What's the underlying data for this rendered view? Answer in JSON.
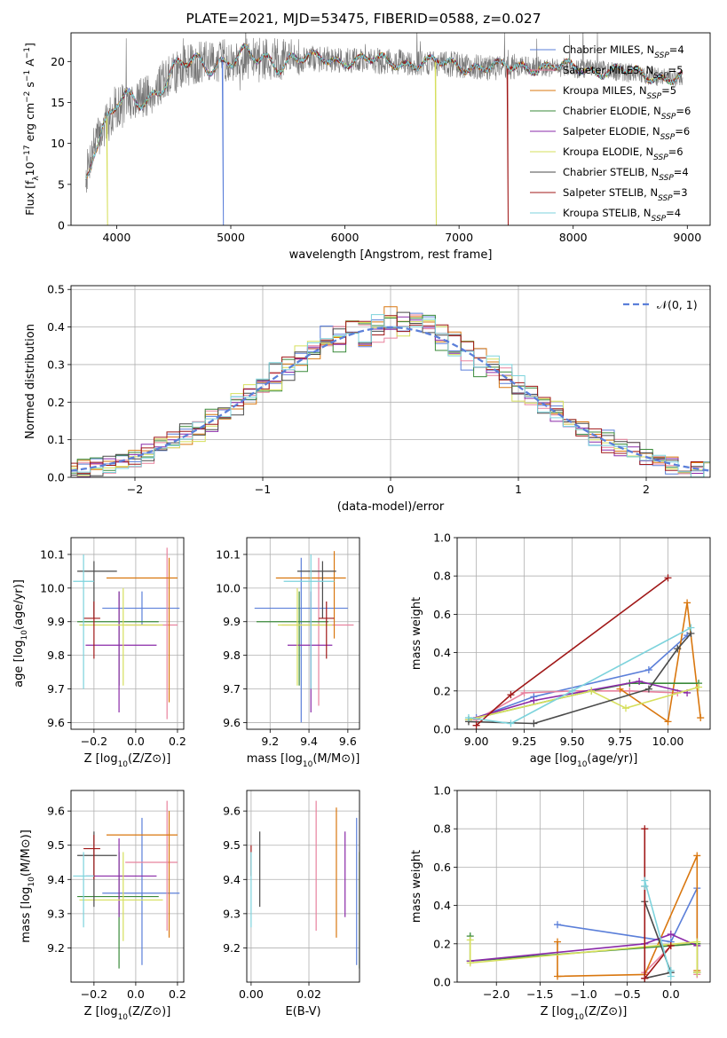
{
  "title": "PLATE=2021, MJD=53475, FIBERID=0588, z=0.027",
  "colors": {
    "s0": "#5b7fd9",
    "s1": "#e8829e",
    "s2": "#d9770f",
    "s3": "#3a8a3a",
    "s4": "#8a2aa8",
    "s5": "#d6df5c",
    "s6": "#4a4a4a",
    "s7": "#a01818",
    "s8": "#7dd3dc"
  },
  "chart_data": [
    {
      "id": "spectrum",
      "type": "line",
      "xlabel": "wavelength [Angstrom, rest frame]",
      "ylabel": "Flux [f_λ10^-17 erg cm^-2 s^-1 A^-1]",
      "xlim": [
        3600,
        9200
      ],
      "ylim": [
        0,
        23.5
      ],
      "xticks": [
        4000,
        5000,
        6000,
        7000,
        8000,
        9000
      ],
      "yticks": [
        0,
        5,
        10,
        15,
        20
      ],
      "grid": false,
      "legend_position": "top-right",
      "legend": [
        "Chabrier MILES, N_SSP=4",
        "Salpeter MILES, N_SSP=5",
        "Kroupa MILES, N_SSP=5",
        "Chabrier ELODIE, N_SSP=6",
        "Salpeter ELODIE, N_SSP=6",
        "Kroupa ELODIE, N_SSP=6",
        "Chabrier STELIB, N_SSP=4",
        "Salpeter STELIB, N_SSP=3",
        "Kroupa STELIB, N_SSP=4"
      ],
      "data_trend": {
        "x": [
          3730,
          3800,
          3900,
          4000,
          4100,
          4200,
          4300,
          4400,
          4500,
          4600,
          4800,
          5000,
          5200,
          5400,
          5600,
          5800,
          6000,
          6200,
          6400,
          6600,
          6800,
          7000,
          7200,
          7400,
          7600,
          7800,
          8000,
          8200,
          8400,
          8600,
          8800,
          8960
        ],
        "y": [
          6,
          10,
          12,
          14.5,
          15,
          15.5,
          16,
          17.5,
          18.5,
          19.5,
          20,
          20.2,
          20.3,
          20.3,
          20.2,
          20.3,
          20.2,
          20.1,
          20.0,
          19.8,
          19.8,
          19.6,
          19.3,
          19.2,
          19.5,
          19.3,
          19.2,
          19.0,
          18.8,
          18.4,
          18.1,
          18.0
        ]
      },
      "dropouts": [
        {
          "series": "Kroupa ELODIE",
          "x": 3920
        },
        {
          "series": "Chabrier MILES",
          "x": 4935
        },
        {
          "series": "Kroupa ELODIE",
          "x": 6800
        },
        {
          "series": "Salpeter STELIB",
          "x": 7430
        }
      ]
    },
    {
      "id": "residuals",
      "type": "histogram",
      "xlabel": "(data-model)/error",
      "ylabel": "Normed distribution",
      "xlim": [
        -2.5,
        2.5
      ],
      "ylim": [
        0,
        0.51
      ],
      "xticks": [
        -2,
        -1,
        0,
        1,
        2
      ],
      "yticks": [
        0.0,
        0.1,
        0.2,
        0.3,
        0.4,
        0.5
      ],
      "grid": true,
      "legend_position": "top-right",
      "legend": [
        "𝒩(0, 1)"
      ],
      "bin_width": 0.1,
      "reference": "N(0,1) normal density, dashed"
    },
    {
      "id": "age-vs-Z",
      "type": "errorbar",
      "xlabel": "Z [log₁₀(Z/Z⊙)]",
      "ylabel": "age  [log₁₀(age/yr)]",
      "xlim": [
        -0.31,
        0.23
      ],
      "ylim": [
        9.58,
        10.15
      ],
      "xticks": [
        -0.2,
        0.0,
        0.2
      ],
      "yticks": [
        9.6,
        9.7,
        9.8,
        9.9,
        10.0,
        10.1
      ],
      "grid": true,
      "points": [
        {
          "color": "s0",
          "x": 0.03,
          "y": 9.94,
          "xerr": [
            0.19,
            0.18
          ],
          "yerr": [
            0.05,
            0.05
          ]
        },
        {
          "color": "s1",
          "x": 0.15,
          "y": 9.89,
          "xerr": [
            0.2,
            0.05
          ],
          "yerr": [
            0.28,
            0.23
          ]
        },
        {
          "color": "s2",
          "x": 0.16,
          "y": 10.03,
          "xerr": [
            0.3,
            0.04
          ],
          "yerr": [
            0.37,
            0.06
          ]
        },
        {
          "color": "s3",
          "x": -0.08,
          "y": 9.9,
          "xerr": [
            0.2,
            0.19
          ],
          "yerr": [
            0.19,
            0.09
          ]
        },
        {
          "color": "s4",
          "x": -0.08,
          "y": 9.83,
          "xerr": [
            0.16,
            0.18
          ],
          "yerr": [
            0.2,
            0.16
          ]
        },
        {
          "color": "s5",
          "x": -0.06,
          "y": 9.89,
          "xerr": [
            0.21,
            0.19
          ],
          "yerr": [
            0.18,
            0.11
          ]
        },
        {
          "color": "s6",
          "x": -0.2,
          "y": 10.05,
          "xerr": [
            0.08,
            0.11
          ],
          "yerr": [
            0.14,
            0.03
          ]
        },
        {
          "color": "s7",
          "x": -0.2,
          "y": 9.91,
          "xerr": [
            0.05,
            0.03
          ],
          "yerr": [
            0.12,
            0.05
          ]
        },
        {
          "color": "s8",
          "x": -0.25,
          "y": 10.02,
          "xerr": [
            0.05,
            0.05
          ],
          "yerr": [
            0.32,
            0.08
          ]
        }
      ]
    },
    {
      "id": "age-vs-mass",
      "type": "errorbar",
      "xlabel": "mass [log₁₀(M/M⊙)]",
      "ylabel": "",
      "xlim": [
        9.08,
        9.66
      ],
      "ylim": [
        9.58,
        10.15
      ],
      "xticks": [
        9.2,
        9.4,
        9.6
      ],
      "yticks": [
        9.6,
        9.7,
        9.8,
        9.9,
        10.0,
        10.1
      ],
      "grid": true,
      "points": [
        {
          "color": "s0",
          "x": 9.36,
          "y": 9.94,
          "xerr": [
            0.24,
            0.24
          ],
          "yerr": [
            0.34,
            0.15
          ]
        },
        {
          "color": "s1",
          "x": 9.45,
          "y": 9.89,
          "xerr": [
            0.19,
            0.18
          ],
          "yerr": [
            0.24,
            0.2
          ]
        },
        {
          "color": "s2",
          "x": 9.53,
          "y": 10.03,
          "xerr": [
            0.3,
            0.06
          ],
          "yerr": [
            0.18,
            0.08
          ]
        },
        {
          "color": "s3",
          "x": 9.35,
          "y": 9.9,
          "xerr": [
            0.22,
            0.15
          ],
          "yerr": [
            0.19,
            0.09
          ]
        },
        {
          "color": "s4",
          "x": 9.41,
          "y": 9.83,
          "xerr": [
            0.12,
            0.11
          ],
          "yerr": [
            0.2,
            0.16
          ]
        },
        {
          "color": "s5",
          "x": 9.34,
          "y": 9.89,
          "xerr": [
            0.1,
            0.18
          ],
          "yerr": [
            0.18,
            0.11
          ]
        },
        {
          "color": "s6",
          "x": 9.47,
          "y": 10.05,
          "xerr": [
            0.13,
            0.07
          ],
          "yerr": [
            0.14,
            0.03
          ]
        },
        {
          "color": "s7",
          "x": 9.49,
          "y": 9.91,
          "xerr": [
            0.04,
            0.04
          ],
          "yerr": [
            0.12,
            0.05
          ]
        },
        {
          "color": "s8",
          "x": 9.41,
          "y": 10.02,
          "xerr": [
            0.14,
            0.12
          ],
          "yerr": [
            0.32,
            0.08
          ]
        }
      ]
    },
    {
      "id": "weight-vs-age",
      "type": "line",
      "xlabel": "age  [log₁₀(age/yr)]",
      "ylabel": "mass weight",
      "xlim": [
        8.9,
        10.22
      ],
      "ylim": [
        0,
        1.0
      ],
      "xticks": [
        9.0,
        9.25,
        9.5,
        9.75,
        10.0
      ],
      "yticks": [
        0.0,
        0.2,
        0.4,
        0.6,
        0.8,
        1.0
      ],
      "grid": true,
      "series": [
        {
          "color": "s0",
          "x": [
            9.0,
            9.3,
            9.9,
            10.1
          ],
          "y": [
            0.06,
            0.17,
            0.31,
            0.49
          ]
        },
        {
          "color": "s1",
          "x": [
            9.0,
            9.25,
            9.5,
            9.8,
            10.05
          ],
          "y": [
            0.05,
            0.19,
            0.2,
            0.2,
            0.19
          ]
        },
        {
          "color": "s2",
          "x": [
            9.75,
            10.0,
            10.1,
            10.17
          ],
          "y": [
            0.21,
            0.04,
            0.66,
            0.06
          ]
        },
        {
          "color": "s3",
          "x": [
            8.96,
            9.6,
            9.8,
            10.16
          ],
          "y": [
            0.05,
            0.2,
            0.24,
            0.24
          ]
        },
        {
          "color": "s4",
          "x": [
            8.96,
            9.3,
            9.85,
            10.1
          ],
          "y": [
            0.05,
            0.15,
            0.25,
            0.19
          ]
        },
        {
          "color": "s5",
          "x": [
            8.96,
            9.6,
            9.78,
            10.16
          ],
          "y": [
            0.05,
            0.2,
            0.11,
            0.22
          ]
        },
        {
          "color": "s6",
          "x": [
            8.96,
            9.3,
            9.9,
            10.05,
            10.12
          ],
          "y": [
            0.04,
            0.03,
            0.21,
            0.42,
            0.5
          ]
        },
        {
          "color": "s7",
          "x": [
            9.0,
            9.18,
            10.0
          ],
          "y": [
            0.02,
            0.18,
            0.79
          ]
        },
        {
          "color": "s8",
          "x": [
            8.96,
            9.18,
            9.5,
            10.12
          ],
          "y": [
            0.06,
            0.03,
            0.2,
            0.53
          ]
        }
      ]
    },
    {
      "id": "mass-vs-Z",
      "type": "errorbar",
      "xlabel": "Z [log₁₀(Z/Z⊙)]",
      "ylabel": "mass [log₁₀(M/M⊙)]",
      "xlim": [
        -0.31,
        0.23
      ],
      "ylim": [
        9.1,
        9.66
      ],
      "xticks": [
        -0.2,
        0.0,
        0.2
      ],
      "yticks": [
        9.2,
        9.3,
        9.4,
        9.5,
        9.6
      ],
      "grid": true,
      "points": [
        {
          "color": "s0",
          "x": 0.03,
          "y": 9.36,
          "xerr": [
            0.19,
            0.18
          ],
          "yerr": [
            0.21,
            0.22
          ]
        },
        {
          "color": "s1",
          "x": 0.15,
          "y": 9.45,
          "xerr": [
            0.2,
            0.05
          ],
          "yerr": [
            0.2,
            0.18
          ]
        },
        {
          "color": "s2",
          "x": 0.16,
          "y": 9.53,
          "xerr": [
            0.3,
            0.04
          ],
          "yerr": [
            0.3,
            0.07
          ]
        },
        {
          "color": "s3",
          "x": -0.08,
          "y": 9.35,
          "xerr": [
            0.2,
            0.19
          ],
          "yerr": [
            0.21,
            0.13
          ]
        },
        {
          "color": "s4",
          "x": -0.08,
          "y": 9.41,
          "xerr": [
            0.16,
            0.18
          ],
          "yerr": [
            0.12,
            0.11
          ]
        },
        {
          "color": "s5",
          "x": -0.06,
          "y": 9.34,
          "xerr": [
            0.21,
            0.19
          ],
          "yerr": [
            0.12,
            0.14
          ]
        },
        {
          "color": "s6",
          "x": -0.2,
          "y": 9.47,
          "xerr": [
            0.08,
            0.11
          ],
          "yerr": [
            0.15,
            0.07
          ]
        },
        {
          "color": "s7",
          "x": -0.2,
          "y": 9.49,
          "xerr": [
            0.05,
            0.03
          ],
          "yerr": [
            0.09,
            0.04
          ]
        },
        {
          "color": "s8",
          "x": -0.25,
          "y": 9.41,
          "xerr": [
            0.05,
            0.05
          ],
          "yerr": [
            0.15,
            0.07
          ]
        }
      ]
    },
    {
      "id": "mass-vs-ebv",
      "type": "errorbar",
      "xlabel": "E(B-V)",
      "ylabel": "",
      "xlim": [
        -0.0015,
        0.0375
      ],
      "ylim": [
        9.1,
        9.66
      ],
      "xticks": [
        0.0,
        0.02
      ],
      "yticks": [
        9.2,
        9.3,
        9.4,
        9.5,
        9.6
      ],
      "grid": true,
      "points": [
        {
          "color": "s0",
          "x": 0.0365,
          "y": 9.36,
          "yerr": [
            0.21,
            0.22
          ]
        },
        {
          "color": "s1",
          "x": 0.0225,
          "y": 9.45,
          "yerr": [
            0.2,
            0.18
          ]
        },
        {
          "color": "s2",
          "x": 0.0295,
          "y": 9.53,
          "yerr": [
            0.3,
            0.08
          ]
        },
        {
          "color": "s3",
          "x": 0.0375,
          "y": 9.35,
          "yerr": [
            0.21,
            0.13
          ]
        },
        {
          "color": "s4",
          "x": 0.0325,
          "y": 9.41,
          "yerr": [
            0.12,
            0.13
          ]
        },
        {
          "color": "s5",
          "x": 0.0375,
          "y": 9.34,
          "yerr": [
            0.12,
            0.14
          ]
        },
        {
          "color": "s6",
          "x": 0.003,
          "y": 9.47,
          "yerr": [
            0.15,
            0.07
          ]
        },
        {
          "color": "s7",
          "x": 0.0,
          "y": 9.49,
          "yerr": [
            0.08,
            0.01
          ]
        },
        {
          "color": "s8",
          "x": 0.0,
          "y": 9.41,
          "yerr": [
            0.15,
            0.07
          ]
        }
      ]
    },
    {
      "id": "weight-vs-Z",
      "type": "line",
      "xlabel": "Z [log₁₀(Z/Z⊙)]",
      "ylabel": "mass weight",
      "xlim": [
        -2.45,
        0.45
      ],
      "ylim": [
        0,
        1.0
      ],
      "xticks": [
        -2.0,
        -1.5,
        -1.0,
        -0.5,
        0.0
      ],
      "yticks": [
        0.0,
        0.2,
        0.4,
        0.6,
        0.8,
        1.0
      ],
      "grid": true,
      "series": [
        {
          "color": "s0",
          "x": [
            -1.3,
            0.0,
            0.3,
            0.3
          ],
          "y": [
            0.3,
            0.21,
            0.49,
            0.05
          ]
        },
        {
          "color": "s1",
          "x": [
            -0.3,
            0.0,
            0.3,
            0.3
          ],
          "y": [
            0.05,
            0.19,
            0.2,
            0.04
          ]
        },
        {
          "color": "s2",
          "x": [
            -1.3,
            -1.3,
            -0.3,
            0.3,
            0.3
          ],
          "y": [
            0.21,
            0.03,
            0.04,
            0.66,
            0.06
          ]
        },
        {
          "color": "s3",
          "x": [
            -2.3,
            -2.3,
            0.3,
            0.3
          ],
          "y": [
            0.24,
            0.11,
            0.2,
            0.05
          ]
        },
        {
          "color": "s4",
          "x": [
            -2.3,
            -0.3,
            0.0,
            0.3
          ],
          "y": [
            0.11,
            0.2,
            0.25,
            0.19
          ]
        },
        {
          "color": "s5",
          "x": [
            -2.3,
            -2.3,
            0.3,
            0.3
          ],
          "y": [
            0.22,
            0.1,
            0.21,
            0.05
          ]
        },
        {
          "color": "s6",
          "x": [
            -0.3,
            0.0,
            -0.3,
            -0.3
          ],
          "y": [
            0.02,
            0.05,
            0.42,
            0.5
          ]
        },
        {
          "color": "s7",
          "x": [
            -0.3,
            -0.3,
            0.0
          ],
          "y": [
            0.8,
            0.02,
            0.19
          ]
        },
        {
          "color": "s8",
          "x": [
            -0.3,
            -0.3,
            0.0,
            0.0
          ],
          "y": [
            0.5,
            0.53,
            0.03,
            0.06
          ]
        }
      ]
    }
  ]
}
